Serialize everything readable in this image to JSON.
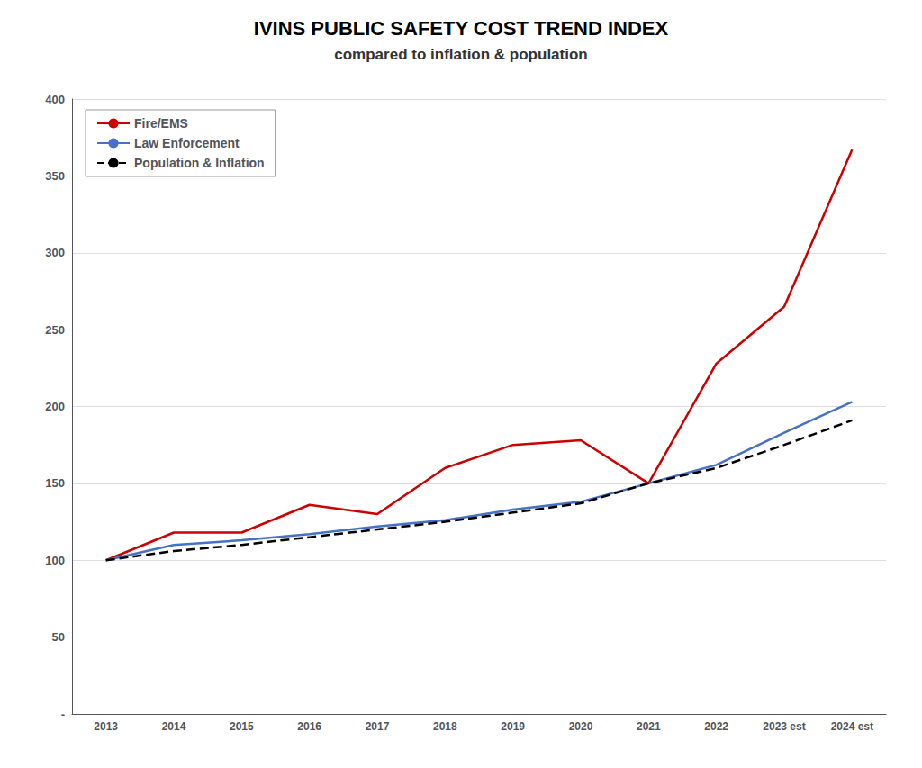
{
  "chart_data": {
    "type": "line",
    "title": "IVINS PUBLIC SAFETY COST TREND INDEX",
    "subtitle": "compared to inflation & population",
    "categories": [
      "2013",
      "2014",
      "2015",
      "2016",
      "2017",
      "2018",
      "2019",
      "2020",
      "2021",
      "2022",
      "2023 est",
      "2024 est"
    ],
    "series": [
      {
        "name": "Fire/EMS",
        "color": "#cc0000",
        "line_style": "solid",
        "values": [
          100,
          118,
          118,
          136,
          130,
          160,
          175,
          178,
          150,
          228,
          265,
          367
        ]
      },
      {
        "name": "Law Enforcement",
        "color": "#4472c4",
        "line_style": "solid",
        "values": [
          100,
          110,
          113,
          117,
          122,
          126,
          133,
          138,
          150,
          162,
          183,
          203
        ]
      },
      {
        "name": "Population & Inflation",
        "color": "#000000",
        "line_style": "dashed",
        "values": [
          100,
          106,
          110,
          115,
          120,
          125,
          131,
          137,
          150,
          160,
          175,
          191
        ]
      }
    ],
    "ylim": [
      0,
      400
    ],
    "yticks": [
      {
        "value": 0,
        "label": "-"
      },
      50,
      100,
      150,
      200,
      250,
      300,
      350,
      400
    ],
    "grid": true,
    "legend": "upper left"
  }
}
